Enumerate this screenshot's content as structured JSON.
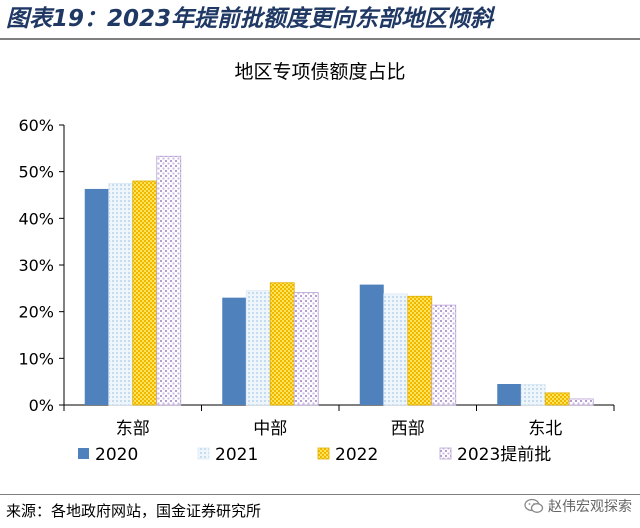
{
  "figure_title": "图表19：2023年提前批额度更向东部地区倾斜",
  "source_text": "来源：各地政府网站，国金证券研究所",
  "watermark": "赵伟宏观探索",
  "watermark_icon": "wechat-icon",
  "chart_data": {
    "type": "bar",
    "title": "地区专项债额度占比",
    "categories": [
      "东部",
      "中部",
      "西部",
      "东北"
    ],
    "ylim": [
      0,
      60
    ],
    "yticks": [
      "0%",
      "10%",
      "20%",
      "30%",
      "40%",
      "50%",
      "60%"
    ],
    "grid": false,
    "legend_position": "bottom",
    "series": [
      {
        "name": "2020",
        "values": [
          46.3,
          23.0,
          25.8,
          4.5
        ],
        "color": "#4f81bd",
        "fill": "solid"
      },
      {
        "name": "2021",
        "values": [
          47.5,
          24.5,
          23.8,
          4.4
        ],
        "color": "#dbe9f6",
        "fill": "dots"
      },
      {
        "name": "2022",
        "values": [
          48.0,
          26.2,
          23.3,
          2.6
        ],
        "color": "#ffd320",
        "fill": "checker"
      },
      {
        "name": "2023提前批",
        "values": [
          53.3,
          24.1,
          21.4,
          1.3
        ],
        "color": "#a58ac4",
        "fill": "lattice"
      }
    ]
  }
}
